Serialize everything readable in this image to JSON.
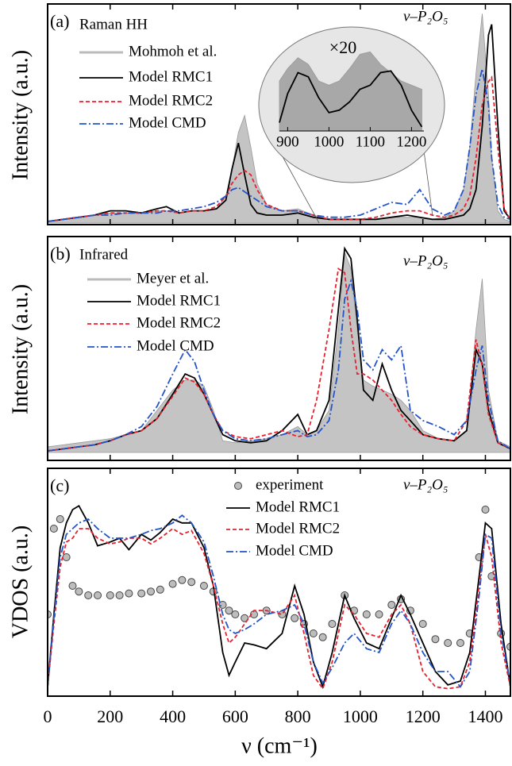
{
  "chart_data": [
    {
      "type": "line",
      "panel_label": "(a)",
      "legend_title": "Raman HH",
      "sample_label": "ν–P₂O₅",
      "y_label": "Intensity (a.u.)",
      "xlim": [
        0,
        1480
      ],
      "ylim": [
        0,
        1
      ],
      "x": [
        0,
        50,
        100,
        150,
        200,
        250,
        300,
        350,
        380,
        420,
        460,
        500,
        540,
        570,
        590,
        610,
        630,
        650,
        670,
        700,
        750,
        800,
        850,
        900,
        950,
        1000,
        1050,
        1100,
        1150,
        1190,
        1230,
        1270,
        1300,
        1330,
        1350,
        1370,
        1390,
        1410,
        1420,
        1440,
        1460,
        1480
      ],
      "series": [
        {
          "name": "Mohmoh et al.",
          "color": "#c4c4c4",
          "style": "fill",
          "values": [
            0,
            0.01,
            0.02,
            0.03,
            0.04,
            0.04,
            0.04,
            0.05,
            0.05,
            0.04,
            0.05,
            0.05,
            0.06,
            0.12,
            0.25,
            0.42,
            0.5,
            0.35,
            0.18,
            0.08,
            0.05,
            0.06,
            0.03,
            0.01,
            0.01,
            0.01,
            0.01,
            0.02,
            0.02,
            0.02,
            0.01,
            0.02,
            0.05,
            0.15,
            0.35,
            0.7,
            0.98,
            0.6,
            0.3,
            0.05,
            0.01,
            0
          ]
        },
        {
          "name": "Model RMC1",
          "color": "#000000",
          "style": "solid",
          "values": [
            0,
            0.01,
            0.02,
            0.03,
            0.05,
            0.05,
            0.04,
            0.06,
            0.07,
            0.04,
            0.05,
            0.05,
            0.06,
            0.1,
            0.25,
            0.37,
            0.22,
            0.08,
            0.04,
            0.03,
            0.03,
            0.04,
            0.02,
            0.01,
            0.01,
            0.01,
            0.01,
            0.02,
            0.03,
            0.02,
            0.01,
            0.01,
            0.02,
            0.03,
            0.06,
            0.15,
            0.45,
            0.88,
            0.93,
            0.45,
            0.05,
            0.01
          ]
        },
        {
          "name": "Model RMC2",
          "color": "#e8212e",
          "style": "dashed",
          "values": [
            0,
            0.01,
            0.02,
            0.03,
            0.04,
            0.04,
            0.04,
            0.05,
            0.05,
            0.04,
            0.05,
            0.05,
            0.07,
            0.12,
            0.18,
            0.22,
            0.24,
            0.22,
            0.15,
            0.08,
            0.05,
            0.05,
            0.03,
            0.01,
            0.01,
            0.01,
            0.02,
            0.04,
            0.05,
            0.05,
            0.03,
            0.02,
            0.03,
            0.06,
            0.12,
            0.3,
            0.55,
            0.66,
            0.68,
            0.35,
            0.06,
            0.01
          ]
        },
        {
          "name": "Model CMD",
          "color": "#2454c8",
          "style": "dashdot",
          "values": [
            0,
            0.01,
            0.02,
            0.03,
            0.03,
            0.04,
            0.04,
            0.04,
            0.05,
            0.05,
            0.06,
            0.07,
            0.09,
            0.12,
            0.15,
            0.16,
            0.14,
            0.12,
            0.1,
            0.07,
            0.05,
            0.05,
            0.03,
            0.02,
            0.02,
            0.03,
            0.06,
            0.09,
            0.08,
            0.15,
            0.06,
            0.03,
            0.05,
            0.15,
            0.35,
            0.6,
            0.72,
            0.55,
            0.3,
            0.08,
            0.02,
            0.01
          ]
        }
      ],
      "inset": {
        "label": "×20",
        "xlim": [
          880,
          1230
        ],
        "ylim": [
          0,
          1
        ],
        "xticks": [
          900,
          1000,
          1100,
          1200
        ],
        "x": [
          880,
          900,
          925,
          950,
          975,
          1000,
          1025,
          1050,
          1075,
          1100,
          1125,
          1150,
          1175,
          1200,
          1225
        ],
        "series": [
          {
            "color": "#a8a8a8",
            "style": "fill",
            "values": [
              0.6,
              0.75,
              0.88,
              0.8,
              0.6,
              0.55,
              0.6,
              0.75,
              0.92,
              0.95,
              0.8,
              0.7,
              0.6,
              0.55,
              0.5
            ]
          },
          {
            "color": "#000000",
            "style": "solid",
            "values": [
              0.1,
              0.45,
              0.7,
              0.65,
              0.4,
              0.22,
              0.25,
              0.35,
              0.5,
              0.55,
              0.7,
              0.72,
              0.55,
              0.25,
              0.05
            ]
          }
        ]
      }
    },
    {
      "type": "line",
      "panel_label": "(b)",
      "legend_title": "Infrared",
      "sample_label": "ν–P₂O₅",
      "y_label": "Intensity (a.u.)",
      "xlim": [
        0,
        1480
      ],
      "ylim": [
        0,
        1
      ],
      "x": [
        0,
        50,
        100,
        150,
        200,
        250,
        300,
        350,
        400,
        440,
        470,
        500,
        530,
        560,
        600,
        650,
        700,
        750,
        800,
        830,
        860,
        900,
        930,
        950,
        970,
        990,
        1010,
        1040,
        1070,
        1100,
        1130,
        1160,
        1200,
        1250,
        1300,
        1340,
        1370,
        1390,
        1410,
        1440,
        1480
      ],
      "series": [
        {
          "name": "Meyer et al.",
          "color": "#c4c4c4",
          "style": "fill",
          "values": [
            0.02,
            0.03,
            0.04,
            0.05,
            0.06,
            0.08,
            0.1,
            0.2,
            0.3,
            0.35,
            0.35,
            0.32,
            0.2,
            0.05,
            0.04,
            0.05,
            0.06,
            0.08,
            0.12,
            0.08,
            0.1,
            0.2,
            0.6,
            0.98,
            0.9,
            0.6,
            0.35,
            0.32,
            0.3,
            0.28,
            0.25,
            0.2,
            0.1,
            0.06,
            0.05,
            0.1,
            0.6,
            0.85,
            0.3,
            0.05,
            0.02
          ]
        },
        {
          "name": "Model RMC1",
          "color": "#000000",
          "style": "solid",
          "values": [
            0,
            0.01,
            0.02,
            0.03,
            0.05,
            0.08,
            0.1,
            0.16,
            0.28,
            0.38,
            0.36,
            0.28,
            0.18,
            0.08,
            0.05,
            0.04,
            0.05,
            0.1,
            0.18,
            0.08,
            0.1,
            0.25,
            0.7,
            1.0,
            0.95,
            0.65,
            0.3,
            0.25,
            0.43,
            0.3,
            0.2,
            0.15,
            0.08,
            0.06,
            0.05,
            0.1,
            0.5,
            0.43,
            0.2,
            0.04,
            0.01
          ]
        },
        {
          "name": "Model RMC2",
          "color": "#e8212e",
          "style": "dashed",
          "values": [
            0,
            0.01,
            0.02,
            0.03,
            0.05,
            0.08,
            0.1,
            0.16,
            0.27,
            0.36,
            0.34,
            0.28,
            0.18,
            0.1,
            0.07,
            0.06,
            0.08,
            0.1,
            0.07,
            0.08,
            0.25,
            0.6,
            0.9,
            0.88,
            0.6,
            0.38,
            0.38,
            0.35,
            0.3,
            0.25,
            0.18,
            0.12,
            0.08,
            0.06,
            0.05,
            0.15,
            0.55,
            0.42,
            0.18,
            0.04,
            0.01
          ]
        },
        {
          "name": "Model CMD",
          "color": "#2454c8",
          "style": "dashdot",
          "values": [
            0,
            0.01,
            0.02,
            0.03,
            0.05,
            0.08,
            0.12,
            0.22,
            0.38,
            0.5,
            0.44,
            0.3,
            0.18,
            0.1,
            0.06,
            0.05,
            0.06,
            0.08,
            0.1,
            0.07,
            0.08,
            0.15,
            0.4,
            0.75,
            0.84,
            0.7,
            0.45,
            0.4,
            0.5,
            0.45,
            0.52,
            0.2,
            0.15,
            0.12,
            0.08,
            0.15,
            0.4,
            0.52,
            0.25,
            0.05,
            0.01
          ]
        }
      ]
    },
    {
      "type": "line",
      "panel_label": "(c)",
      "sample_label": "ν–P₂O₅",
      "y_label": "VDOS (a.u.)",
      "x_label": "ν (cm⁻¹)",
      "xlim": [
        0,
        1480
      ],
      "ylim": [
        0,
        1
      ],
      "xticks": [
        0,
        200,
        400,
        600,
        800,
        1000,
        1200,
        1400
      ],
      "x": [
        0,
        20,
        40,
        60,
        80,
        100,
        130,
        160,
        200,
        230,
        260,
        300,
        330,
        360,
        400,
        430,
        460,
        500,
        530,
        560,
        580,
        600,
        630,
        660,
        700,
        750,
        790,
        820,
        850,
        880,
        910,
        950,
        980,
        1020,
        1060,
        1100,
        1130,
        1160,
        1200,
        1240,
        1280,
        1320,
        1350,
        1380,
        1400,
        1420,
        1450,
        1480
      ],
      "series": [
        {
          "name": "experiment",
          "color": "#bdbdbd",
          "style": "circle",
          "values": [
            0.4,
            0.85,
            0.9,
            0.7,
            0.55,
            0.52,
            0.5,
            0.5,
            0.5,
            0.5,
            0.51,
            0.51,
            0.52,
            0.53,
            0.56,
            0.58,
            0.57,
            0.55,
            0.52,
            0.45,
            0.42,
            0.4,
            0.38,
            0.4,
            0.42,
            0.4,
            0.38,
            0.35,
            0.3,
            0.28,
            0.35,
            0.5,
            0.42,
            0.4,
            0.4,
            0.45,
            0.48,
            0.42,
            0.35,
            0.27,
            0.25,
            0.25,
            0.3,
            0.7,
            0.95,
            0.6,
            0.3,
            0.23
          ]
        },
        {
          "name": "Model RMC1",
          "color": "#000000",
          "style": "solid",
          "values": [
            0.02,
            0.4,
            0.75,
            0.88,
            0.95,
            0.97,
            0.88,
            0.76,
            0.78,
            0.8,
            0.74,
            0.82,
            0.79,
            0.83,
            0.9,
            0.88,
            0.88,
            0.75,
            0.55,
            0.2,
            0.08,
            0.15,
            0.25,
            0.24,
            0.22,
            0.3,
            0.55,
            0.4,
            0.15,
            0.02,
            0.2,
            0.5,
            0.38,
            0.25,
            0.22,
            0.38,
            0.5,
            0.4,
            0.25,
            0.1,
            0.03,
            0.05,
            0.2,
            0.6,
            0.88,
            0.85,
            0.35,
            0.02
          ]
        },
        {
          "name": "Model RMC2",
          "color": "#e8212e",
          "style": "dashed",
          "values": [
            0.02,
            0.35,
            0.65,
            0.78,
            0.8,
            0.85,
            0.85,
            0.8,
            0.77,
            0.78,
            0.8,
            0.8,
            0.77,
            0.8,
            0.85,
            0.82,
            0.84,
            0.72,
            0.55,
            0.35,
            0.25,
            0.28,
            0.35,
            0.42,
            0.42,
            0.4,
            0.5,
            0.3,
            0.08,
            0.01,
            0.15,
            0.45,
            0.4,
            0.3,
            0.28,
            0.4,
            0.45,
            0.35,
            0.1,
            0.02,
            0.01,
            0.02,
            0.15,
            0.55,
            0.82,
            0.7,
            0.25,
            0.02
          ]
        },
        {
          "name": "Model CMD",
          "color": "#2454c8",
          "style": "dashdot",
          "values": [
            0.02,
            0.38,
            0.7,
            0.82,
            0.85,
            0.88,
            0.9,
            0.85,
            0.8,
            0.8,
            0.8,
            0.82,
            0.84,
            0.85,
            0.88,
            0.92,
            0.88,
            0.78,
            0.6,
            0.4,
            0.32,
            0.3,
            0.32,
            0.35,
            0.4,
            0.42,
            0.45,
            0.35,
            0.15,
            0.04,
            0.12,
            0.25,
            0.3,
            0.22,
            0.2,
            0.35,
            0.42,
            0.35,
            0.2,
            0.1,
            0.1,
            0.02,
            0.1,
            0.5,
            0.82,
            0.8,
            0.3,
            0.03
          ]
        }
      ]
    }
  ]
}
